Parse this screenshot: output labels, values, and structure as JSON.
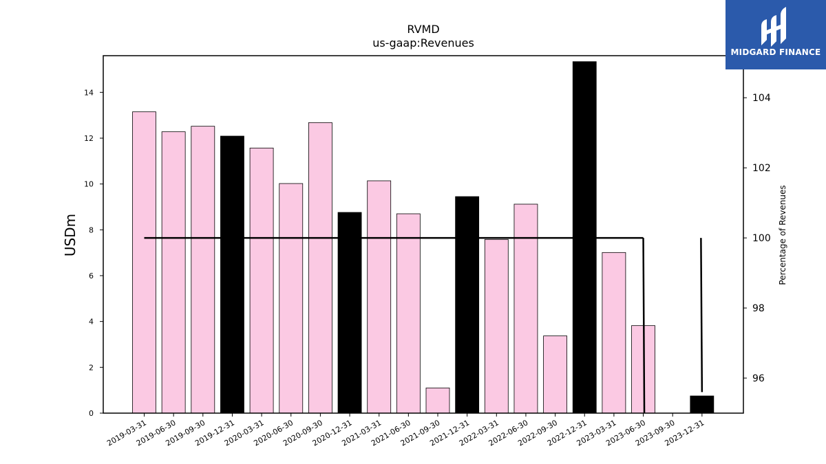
{
  "chart_data": {
    "type": "bar",
    "title": "RVMD",
    "subtitle": "us-gaap:Revenues",
    "ylabel": "USDm",
    "y2label": "Percentage of Revenues",
    "ylim": [
      0,
      15.6
    ],
    "y2lim": [
      95.0,
      105.2
    ],
    "yticks": [
      0,
      2,
      4,
      6,
      8,
      10,
      12,
      14
    ],
    "y2ticks": [
      96,
      98,
      100,
      102,
      104
    ],
    "categories": [
      "2019-03-31",
      "2019-06-30",
      "2019-09-30",
      "2019-12-31",
      "2020-03-31",
      "2020-06-30",
      "2020-09-30",
      "2020-12-31",
      "2021-03-31",
      "2021-06-30",
      "2021-09-30",
      "2021-12-31",
      "2022-03-31",
      "2022-06-30",
      "2022-09-30",
      "2022-12-31",
      "2023-03-31",
      "2023-06-30",
      "2023-09-30",
      "2023-12-31"
    ],
    "series": [
      {
        "type": "bar",
        "values": [
          13.15,
          12.28,
          12.52,
          12.09,
          11.57,
          10.02,
          12.68,
          8.76,
          10.14,
          8.7,
          1.1,
          9.45,
          7.58,
          9.12,
          3.37,
          15.34,
          7.01,
          3.82,
          0,
          0.75
        ],
        "colors": [
          "#fbc9e3",
          "#fbc9e3",
          "#fbc9e3",
          "#000000",
          "#fbc9e3",
          "#fbc9e3",
          "#fbc9e3",
          "#000000",
          "#fbc9e3",
          "#fbc9e3",
          "#fbc9e3",
          "#000000",
          "#fbc9e3",
          "#fbc9e3",
          "#fbc9e3",
          "#000000",
          "#fbc9e3",
          "#fbc9e3",
          "#fbc9e3",
          "#000000"
        ]
      },
      {
        "type": "line",
        "axis": "right",
        "color": "#000000",
        "x": [
          "2019-03-31",
          "2019-06-30",
          "2019-09-30",
          "2019-12-31",
          "2020-03-31",
          "2020-06-30",
          "2020-09-30",
          "2020-12-31",
          "2021-03-31",
          "2021-06-30",
          "2021-09-30",
          "2021-12-31",
          "2022-03-31",
          "2022-06-30",
          "2022-09-30",
          "2022-12-31",
          "2023-03-31",
          "2023-06-30",
          "2023-09-30",
          "2023-12-31"
        ],
        "values": [
          100,
          100,
          100,
          100,
          100,
          100,
          100,
          100,
          100,
          100,
          100,
          100,
          100,
          100,
          100,
          100,
          100,
          100,
          null,
          null
        ],
        "segments": [
          {
            "x": "2023-06-30",
            "from": 100,
            "to": 94.9
          },
          {
            "x": "2023-12-31",
            "from": 95.6,
            "to": 100
          }
        ]
      }
    ],
    "grid": false
  },
  "logo": {
    "text": "MIDGARD FINANCE",
    "bg": "#2b5aab"
  }
}
